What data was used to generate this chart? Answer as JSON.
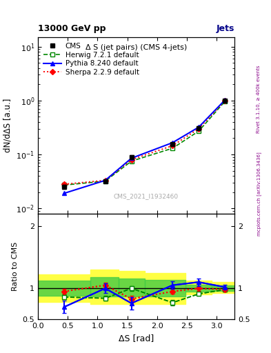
{
  "title_top": "13000 GeV pp",
  "title_right": "Jets",
  "plot_title": "Δ S (jet pairs) (CMS 4-jets)",
  "xlabel": "ΔS [rad]",
  "ylabel_main": "dN/dΔS [a.u.]",
  "ylabel_ratio": "Ratio to CMS",
  "watermark": "CMS_2021_I1932460",
  "rivet_text": "Rivet 3.1.10, ≥ 400k events",
  "mcplots_text": "mcplots.cern.ch [arXiv:1306.3436]",
  "x": [
    0.44,
    1.13,
    1.57,
    2.26,
    2.7,
    3.14
  ],
  "cms_y": [
    0.025,
    0.032,
    0.09,
    0.155,
    0.31,
    1.0
  ],
  "cms_yerr": [
    0.002,
    0.002,
    0.006,
    0.01,
    0.02,
    0.04
  ],
  "herwig_y": [
    0.027,
    0.032,
    0.075,
    0.13,
    0.27,
    0.96
  ],
  "herwig_ratio": [
    0.86,
    0.84,
    1.0,
    0.77,
    0.91,
    0.98
  ],
  "herwig_ratio_err": [
    0.04,
    0.04,
    0.04,
    0.04,
    0.03,
    0.03
  ],
  "pythia_y": [
    0.019,
    0.033,
    0.085,
    0.165,
    0.32,
    1.02
  ],
  "pythia_ratio": [
    0.7,
    1.0,
    0.76,
    1.05,
    1.1,
    1.02
  ],
  "pythia_ratio_err": [
    0.1,
    0.08,
    0.1,
    0.06,
    0.06,
    0.04
  ],
  "sherpa_y": [
    0.028,
    0.033,
    0.08,
    0.145,
    0.3,
    0.995
  ],
  "sherpa_ratio": [
    0.95,
    1.05,
    0.83,
    0.95,
    1.0,
    0.98
  ],
  "sherpa_ratio_err": [
    0.04,
    0.04,
    0.05,
    0.04,
    0.04,
    0.03
  ],
  "xlim": [
    0.0,
    3.3
  ],
  "ylim_main": [
    0.008,
    15.0
  ],
  "ylim_ratio": [
    0.5,
    2.2
  ],
  "color_cms": "#000000",
  "color_herwig": "#008800",
  "color_pythia": "#0000ff",
  "color_sherpa": "#ff0000",
  "color_band_yellow": "#ffff44",
  "color_band_green": "#44cc44",
  "bg_color": "#ffffff"
}
